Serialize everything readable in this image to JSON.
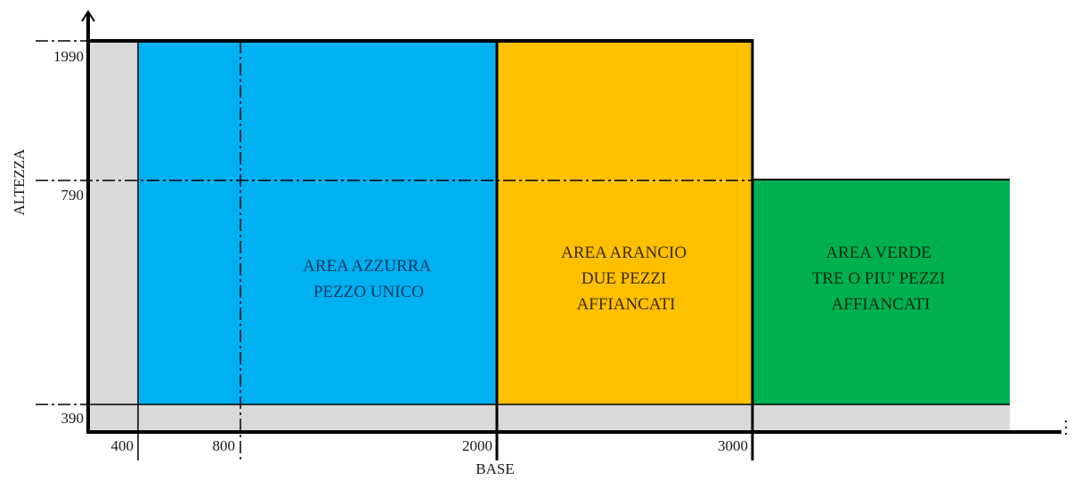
{
  "axes": {
    "x_title": "BASE",
    "y_title": "ALTEZZA"
  },
  "x_ticks": [
    "400",
    "800",
    "2000",
    "3000"
  ],
  "y_ticks": [
    "1990",
    "790",
    "390"
  ],
  "zones": {
    "blue": {
      "lines": [
        "AREA AZZURRA",
        "PEZZO UNICO"
      ],
      "color": "#00b0f0",
      "text_color": "#0a3a66"
    },
    "orange": {
      "lines": [
        "AREA ARANCIO",
        "DUE PEZZI",
        "AFFIANCATI"
      ],
      "color": "#ffc000",
      "text_color": "#3a2a00"
    },
    "green": {
      "lines": [
        "AREA VERDE",
        "TRE O PIU' PEZZI",
        "AFFIANCATI"
      ],
      "color": "#00b050",
      "text_color": "#0a2a10"
    }
  },
  "colors": {
    "grey_band": "#d9d9d9",
    "outline": "#000000"
  }
}
